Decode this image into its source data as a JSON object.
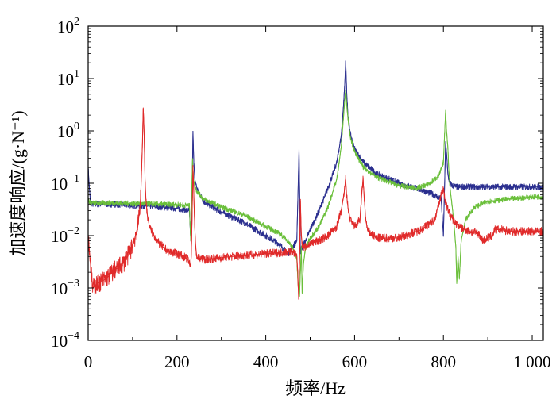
{
  "chart_data": {
    "type": "line",
    "title": "",
    "xlabel": "频率/Hz",
    "ylabel": "加速度响应/(g·N⁻¹)",
    "xlim": [
      0,
      1025
    ],
    "ylim_log10": [
      -4,
      2
    ],
    "yscale": "log",
    "xticks": [
      {
        "value": 0,
        "label": "0"
      },
      {
        "value": 200,
        "label": "200"
      },
      {
        "value": 400,
        "label": "400"
      },
      {
        "value": 600,
        "label": "600"
      },
      {
        "value": 800,
        "label": "800"
      },
      {
        "value": 1000,
        "label": "1 000"
      }
    ],
    "yticks": [
      {
        "exp": -4,
        "base": "10",
        "sup": "−4"
      },
      {
        "exp": -3,
        "base": "10",
        "sup": "−3"
      },
      {
        "exp": -2,
        "base": "10",
        "sup": "−2"
      },
      {
        "exp": -1,
        "base": "10",
        "sup": "−1"
      },
      {
        "exp": 0,
        "base": "10",
        "sup": "0"
      },
      {
        "exp": 1,
        "base": "10",
        "sup": "1"
      },
      {
        "exp": 2,
        "base": "10",
        "sup": "2"
      }
    ],
    "series": [
      {
        "name": "blue",
        "color": "#2b2f8f",
        "x": [
          0,
          2,
          5,
          10,
          50,
          100,
          150,
          200,
          220,
          228,
          230,
          232,
          234,
          236,
          238,
          240,
          245,
          260,
          300,
          350,
          400,
          430,
          450,
          460,
          470,
          475,
          478,
          482,
          490,
          500,
          520,
          540,
          560,
          570,
          575,
          578,
          580,
          582,
          585,
          590,
          600,
          620,
          650,
          700,
          750,
          780,
          795,
          800,
          802,
          805,
          808,
          810,
          812,
          815,
          820,
          830,
          850,
          900,
          950,
          1000,
          1025
        ],
        "values": [
          0.2,
          0.1,
          0.045,
          0.04,
          0.04,
          0.038,
          0.036,
          0.033,
          0.031,
          0.03,
          0.012,
          0.007,
          0.05,
          1.0,
          0.25,
          0.12,
          0.08,
          0.045,
          0.028,
          0.018,
          0.01,
          0.007,
          0.0045,
          0.006,
          0.008,
          0.45,
          0.005,
          0.006,
          0.008,
          0.013,
          0.03,
          0.08,
          0.25,
          0.8,
          3.0,
          8.0,
          22.0,
          6.0,
          2.0,
          0.9,
          0.45,
          0.25,
          0.15,
          0.1,
          0.075,
          0.06,
          0.05,
          0.01,
          0.05,
          0.6,
          0.3,
          0.15,
          0.12,
          0.1,
          0.09,
          0.085,
          0.085,
          0.085,
          0.085,
          0.085,
          0.085
        ]
      },
      {
        "name": "green",
        "color": "#6abf3a",
        "x": [
          0,
          2,
          5,
          10,
          50,
          100,
          150,
          200,
          220,
          228,
          231,
          233,
          235,
          237,
          240,
          245,
          260,
          300,
          350,
          400,
          430,
          450,
          460,
          465,
          470,
          472,
          474,
          476,
          478,
          480,
          482,
          485,
          490,
          500,
          520,
          540,
          560,
          570,
          575,
          578,
          580,
          582,
          585,
          590,
          600,
          620,
          650,
          700,
          740,
          770,
          790,
          800,
          803,
          805,
          807,
          810,
          812,
          815,
          820,
          825,
          828,
          830,
          833,
          836,
          840,
          850,
          870,
          900,
          950,
          1000,
          1025
        ],
        "values": [
          0.05,
          0.045,
          0.042,
          0.042,
          0.042,
          0.041,
          0.04,
          0.039,
          0.038,
          0.037,
          0.008,
          0.06,
          0.3,
          0.12,
          0.09,
          0.07,
          0.05,
          0.035,
          0.025,
          0.015,
          0.011,
          0.008,
          0.006,
          0.0045,
          0.0035,
          0.0015,
          0.0009,
          0.0007,
          0.002,
          0.006,
          0.0008,
          0.003,
          0.006,
          0.009,
          0.015,
          0.035,
          0.12,
          0.5,
          1.8,
          4.0,
          6.0,
          3.5,
          1.8,
          0.8,
          0.4,
          0.2,
          0.13,
          0.09,
          0.08,
          0.1,
          0.14,
          0.25,
          1.0,
          2.5,
          1.0,
          0.5,
          0.2,
          0.08,
          0.035,
          0.013,
          0.006,
          0.0012,
          0.004,
          0.0015,
          0.008,
          0.02,
          0.035,
          0.045,
          0.05,
          0.055,
          0.055
        ]
      },
      {
        "name": "red",
        "color": "#e02a2a",
        "x": [
          0,
          3,
          5,
          8,
          10,
          20,
          40,
          60,
          80,
          95,
          105,
          112,
          118,
          120,
          122,
          124,
          126,
          128,
          130,
          133,
          138,
          145,
          160,
          180,
          200,
          215,
          225,
          230,
          232,
          234,
          236,
          238,
          240,
          242,
          245,
          260,
          300,
          350,
          400,
          440,
          460,
          470,
          472,
          474,
          476,
          478,
          480,
          482,
          485,
          490,
          500,
          520,
          540,
          560,
          570,
          576,
          580,
          582,
          585,
          590,
          600,
          612,
          616,
          619,
          622,
          625,
          630,
          650,
          700,
          750,
          780,
          795,
          800,
          803,
          808,
          815,
          825,
          840,
          860,
          880,
          885,
          890,
          900,
          910,
          915,
          930,
          950,
          1000,
          1025
        ],
        "values": [
          0.01,
          0.005,
          0.003,
          0.0015,
          0.001,
          0.0012,
          0.0015,
          0.0022,
          0.003,
          0.005,
          0.009,
          0.015,
          0.05,
          0.15,
          0.5,
          2.7,
          1.0,
          0.12,
          0.05,
          0.025,
          0.015,
          0.011,
          0.007,
          0.005,
          0.0045,
          0.004,
          0.0035,
          0.0025,
          0.004,
          0.02,
          0.22,
          0.06,
          0.015,
          0.006,
          0.0038,
          0.0035,
          0.0038,
          0.0042,
          0.0045,
          0.0048,
          0.005,
          0.004,
          0.002,
          0.0006,
          0.003,
          0.05,
          0.01,
          0.007,
          0.006,
          0.006,
          0.007,
          0.008,
          0.01,
          0.015,
          0.03,
          0.06,
          0.12,
          0.06,
          0.035,
          0.02,
          0.015,
          0.02,
          0.06,
          0.12,
          0.05,
          0.02,
          0.012,
          0.009,
          0.009,
          0.013,
          0.02,
          0.06,
          0.08,
          0.05,
          0.035,
          0.025,
          0.018,
          0.014,
          0.012,
          0.011,
          0.009,
          0.008,
          0.009,
          0.01,
          0.013,
          0.013,
          0.012,
          0.012,
          0.012
        ]
      }
    ]
  }
}
